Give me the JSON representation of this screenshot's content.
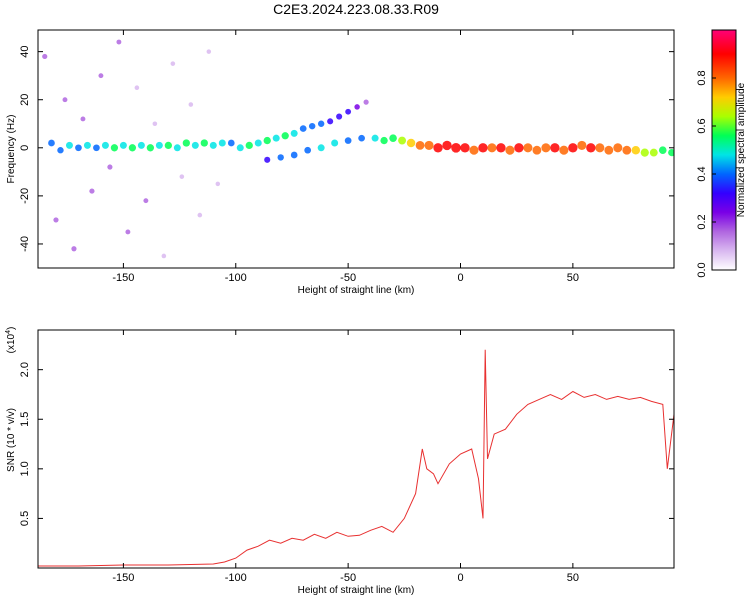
{
  "figure": {
    "title": "C2E3.2024.223.08.33.R09"
  },
  "chart_data": [
    {
      "type": "scatter",
      "xlabel": "Height of straight line (km)",
      "ylabel": "Frequency (Hz)",
      "xlim": [
        -188,
        95
      ],
      "ylim": [
        -50,
        49
      ],
      "xticks": [
        -150,
        -100,
        -50,
        0,
        50
      ],
      "yticks": [
        -40,
        -20,
        0,
        20,
        40
      ],
      "grid": false,
      "colorbar": {
        "label": "Normalized spectral amplitude",
        "range": [
          0,
          1
        ],
        "ticks": [
          0.0,
          0.2,
          0.4,
          0.6,
          0.8
        ],
        "colors": [
          "#ffffff",
          "#d9b8f0",
          "#b066e0",
          "#7a00e6",
          "#3300ff",
          "#0066ff",
          "#00e5e5",
          "#00ff55",
          "#aaff00",
          "#ffcc00",
          "#ff6600",
          "#ff0000",
          "#ff0077"
        ]
      },
      "series": [
        {
          "points": [
            [
              -182,
              2,
              0.45
            ],
            [
              -178,
              -1,
              0.4
            ],
            [
              -174,
              1,
              0.5
            ],
            [
              -170,
              0,
              0.45
            ],
            [
              -166,
              1,
              0.5
            ],
            [
              -162,
              0,
              0.45
            ],
            [
              -158,
              1,
              0.5
            ],
            [
              -154,
              0,
              0.55
            ],
            [
              -150,
              1,
              0.5
            ],
            [
              -146,
              0,
              0.55
            ],
            [
              -142,
              1,
              0.5
            ],
            [
              -138,
              0,
              0.55
            ],
            [
              -134,
              1,
              0.5
            ],
            [
              -130,
              1,
              0.55
            ],
            [
              -126,
              0,
              0.5
            ],
            [
              -122,
              2,
              0.55
            ],
            [
              -118,
              1,
              0.5
            ],
            [
              -114,
              2,
              0.55
            ],
            [
              -110,
              1,
              0.5
            ],
            [
              -106,
              2,
              0.5
            ],
            [
              -102,
              2,
              0.45
            ],
            [
              -98,
              0,
              0.5
            ],
            [
              -94,
              1,
              0.55
            ],
            [
              -90,
              2,
              0.5
            ],
            [
              -86,
              3,
              0.55
            ],
            [
              -82,
              4,
              0.5
            ],
            [
              -78,
              5,
              0.55
            ],
            [
              -74,
              6,
              0.5
            ],
            [
              -70,
              8,
              0.45
            ],
            [
              -66,
              9,
              0.4
            ],
            [
              -62,
              10,
              0.4
            ],
            [
              -58,
              11,
              0.35
            ],
            [
              -54,
              13,
              0.35
            ],
            [
              -50,
              15,
              0.3
            ],
            [
              -46,
              17,
              0.25
            ],
            [
              -42,
              19,
              0.2
            ],
            [
              -86,
              -5,
              0.35
            ],
            [
              -80,
              -4,
              0.4
            ],
            [
              -74,
              -3,
              0.45
            ],
            [
              -68,
              -1,
              0.45
            ],
            [
              -62,
              0,
              0.5
            ],
            [
              -56,
              2,
              0.5
            ],
            [
              -50,
              3,
              0.45
            ],
            [
              -44,
              4,
              0.45
            ],
            [
              -38,
              4,
              0.5
            ],
            [
              -34,
              3,
              0.55
            ],
            [
              -30,
              4,
              0.6
            ],
            [
              -26,
              3,
              0.65
            ],
            [
              -22,
              2,
              0.75
            ],
            [
              -18,
              1,
              0.8
            ],
            [
              -14,
              1,
              0.85
            ],
            [
              -10,
              0,
              0.9
            ],
            [
              -6,
              1,
              0.9
            ],
            [
              -2,
              0,
              0.95
            ],
            [
              2,
              0,
              0.9
            ],
            [
              6,
              -1,
              0.85
            ],
            [
              10,
              0,
              0.9
            ],
            [
              14,
              0,
              0.85
            ],
            [
              18,
              0,
              0.9
            ],
            [
              22,
              -1,
              0.85
            ],
            [
              26,
              0,
              0.9
            ],
            [
              30,
              0,
              0.85
            ],
            [
              34,
              -1,
              0.8
            ],
            [
              38,
              0,
              0.85
            ],
            [
              42,
              0,
              0.9
            ],
            [
              46,
              -1,
              0.85
            ],
            [
              50,
              0,
              0.9
            ],
            [
              54,
              1,
              0.85
            ],
            [
              58,
              0,
              0.9
            ],
            [
              62,
              0,
              0.85
            ],
            [
              66,
              -1,
              0.8
            ],
            [
              70,
              0,
              0.85
            ],
            [
              74,
              -1,
              0.8
            ],
            [
              78,
              -1,
              0.75
            ],
            [
              82,
              -2,
              0.7
            ],
            [
              86,
              -2,
              0.65
            ],
            [
              90,
              -1,
              0.6
            ],
            [
              94,
              -2,
              0.55
            ],
            [
              -185,
              38,
              0.2
            ],
            [
              -180,
              -30,
              0.2
            ],
            [
              -176,
              20,
              0.15
            ],
            [
              -172,
              -42,
              0.2
            ],
            [
              -168,
              12,
              0.15
            ],
            [
              -164,
              -18,
              0.2
            ],
            [
              -160,
              30,
              0.15
            ],
            [
              -156,
              -8,
              0.2
            ],
            [
              -152,
              44,
              0.15
            ],
            [
              -148,
              -35,
              0.15
            ],
            [
              -144,
              25,
              0.1
            ],
            [
              -140,
              -22,
              0.15
            ],
            [
              -136,
              10,
              0.1
            ],
            [
              -132,
              -45,
              0.1
            ],
            [
              -128,
              35,
              0.1
            ],
            [
              -124,
              -12,
              0.1
            ],
            [
              -120,
              18,
              0.1
            ],
            [
              -116,
              -28,
              0.1
            ],
            [
              -112,
              40,
              0.08
            ],
            [
              -108,
              -15,
              0.08
            ]
          ]
        }
      ]
    },
    {
      "type": "line",
      "xlabel": "Height of straight line (km)",
      "ylabel": "SNR (10 * v/v)",
      "yscale_label": "(x10",
      "yscale_exp": "4",
      "yscale_close": ")",
      "xlim": [
        -188,
        95
      ],
      "ylim": [
        0,
        2.4
      ],
      "xticks": [
        -150,
        -100,
        -50,
        0,
        50
      ],
      "yticks": [
        0.5,
        1.0,
        1.5,
        2.0
      ],
      "ytick_labels": [
        "0.5",
        "1.0",
        "1.5",
        "2.0"
      ],
      "grid": false,
      "color": "#e83030",
      "series": [
        {
          "x": [
            -188,
            -170,
            -150,
            -130,
            -110,
            -105,
            -100,
            -95,
            -90,
            -85,
            -80,
            -75,
            -70,
            -65,
            -60,
            -55,
            -50,
            -45,
            -40,
            -35,
            -30,
            -25,
            -20,
            -17,
            -15,
            -12,
            -10,
            -5,
            0,
            5,
            8,
            10,
            11,
            12,
            15,
            20,
            25,
            30,
            35,
            40,
            45,
            50,
            55,
            60,
            65,
            70,
            75,
            80,
            85,
            90,
            92,
            95
          ],
          "y": [
            0.02,
            0.02,
            0.03,
            0.03,
            0.04,
            0.06,
            0.1,
            0.18,
            0.22,
            0.28,
            0.25,
            0.3,
            0.28,
            0.34,
            0.3,
            0.36,
            0.32,
            0.33,
            0.38,
            0.42,
            0.36,
            0.5,
            0.75,
            1.2,
            1.0,
            0.95,
            0.85,
            1.05,
            1.15,
            1.2,
            0.9,
            0.5,
            2.2,
            1.1,
            1.35,
            1.4,
            1.55,
            1.65,
            1.7,
            1.75,
            1.7,
            1.78,
            1.72,
            1.75,
            1.7,
            1.73,
            1.7,
            1.72,
            1.68,
            1.65,
            1.0,
            1.55
          ]
        }
      ]
    }
  ]
}
